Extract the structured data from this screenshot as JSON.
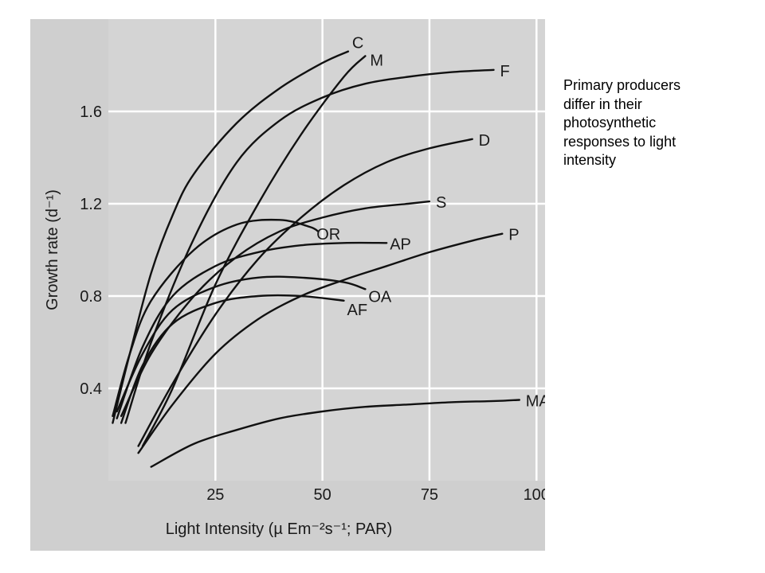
{
  "caption": "Primary producers\ndiffer in their\nphotosynthetic\nresponses to light\nintensity",
  "chart_data": {
    "type": "line",
    "xlabel": "Light Intensity (µ Em⁻²s⁻¹; PAR)",
    "ylabel": "Growth rate (d⁻¹)",
    "xlim": [
      0,
      102
    ],
    "ylim": [
      0,
      2.0
    ],
    "xticks": [
      25,
      50,
      75,
      100
    ],
    "yticks": [
      0.4,
      0.8,
      1.2,
      1.6
    ],
    "xtick_labels": [
      "25",
      "50",
      "75",
      "100"
    ],
    "ytick_labels": [
      "0.4",
      "0.8",
      "1.2",
      "1.6"
    ],
    "grid": true,
    "series": [
      {
        "name": "C",
        "x": [
          1,
          5,
          10,
          15,
          20,
          30,
          40,
          50,
          56
        ],
        "y": [
          0.25,
          0.55,
          0.9,
          1.15,
          1.33,
          1.55,
          1.7,
          1.81,
          1.86
        ]
      },
      {
        "name": "M",
        "x": [
          8,
          15,
          25,
          35,
          45,
          55,
          60
        ],
        "y": [
          0.15,
          0.4,
          0.85,
          1.2,
          1.5,
          1.75,
          1.84
        ]
      },
      {
        "name": "F",
        "x": [
          4,
          10,
          20,
          30,
          40,
          50,
          60,
          70,
          80,
          90
        ],
        "y": [
          0.25,
          0.6,
          1.05,
          1.38,
          1.56,
          1.66,
          1.72,
          1.75,
          1.77,
          1.78
        ]
      },
      {
        "name": "D",
        "x": [
          7,
          15,
          25,
          35,
          45,
          55,
          65,
          75,
          85
        ],
        "y": [
          0.15,
          0.42,
          0.72,
          0.96,
          1.14,
          1.28,
          1.38,
          1.44,
          1.48
        ]
      },
      {
        "name": "S",
        "x": [
          3,
          10,
          20,
          30,
          40,
          50,
          60,
          70,
          75
        ],
        "y": [
          0.28,
          0.55,
          0.8,
          0.97,
          1.08,
          1.14,
          1.18,
          1.2,
          1.21
        ]
      },
      {
        "name": "OR",
        "x": [
          1,
          5,
          10,
          20,
          30,
          40,
          47,
          49
        ],
        "y": [
          0.28,
          0.55,
          0.78,
          1.0,
          1.11,
          1.13,
          1.1,
          1.08
        ]
      },
      {
        "name": "AP",
        "x": [
          2,
          8,
          15,
          25,
          35,
          45,
          55,
          65
        ],
        "y": [
          0.27,
          0.58,
          0.8,
          0.93,
          0.99,
          1.02,
          1.03,
          1.03
        ]
      },
      {
        "name": "OA",
        "x": [
          2,
          8,
          15,
          25,
          35,
          45,
          55,
          60
        ],
        "y": [
          0.3,
          0.55,
          0.74,
          0.84,
          0.88,
          0.88,
          0.86,
          0.83
        ]
      },
      {
        "name": "AF",
        "x": [
          3,
          8,
          15,
          25,
          35,
          45,
          55
        ],
        "y": [
          0.25,
          0.5,
          0.68,
          0.77,
          0.8,
          0.8,
          0.78
        ]
      },
      {
        "name": "P",
        "x": [
          7,
          15,
          25,
          35,
          45,
          55,
          65,
          75,
          85,
          92
        ],
        "y": [
          0.12,
          0.33,
          0.55,
          0.7,
          0.8,
          0.87,
          0.93,
          0.99,
          1.04,
          1.07
        ]
      },
      {
        "name": "MA",
        "x": [
          10,
          20,
          30,
          40,
          50,
          60,
          70,
          80,
          90,
          96
        ],
        "y": [
          0.06,
          0.16,
          0.22,
          0.27,
          0.3,
          0.32,
          0.33,
          0.34,
          0.345,
          0.35
        ]
      }
    ]
  }
}
